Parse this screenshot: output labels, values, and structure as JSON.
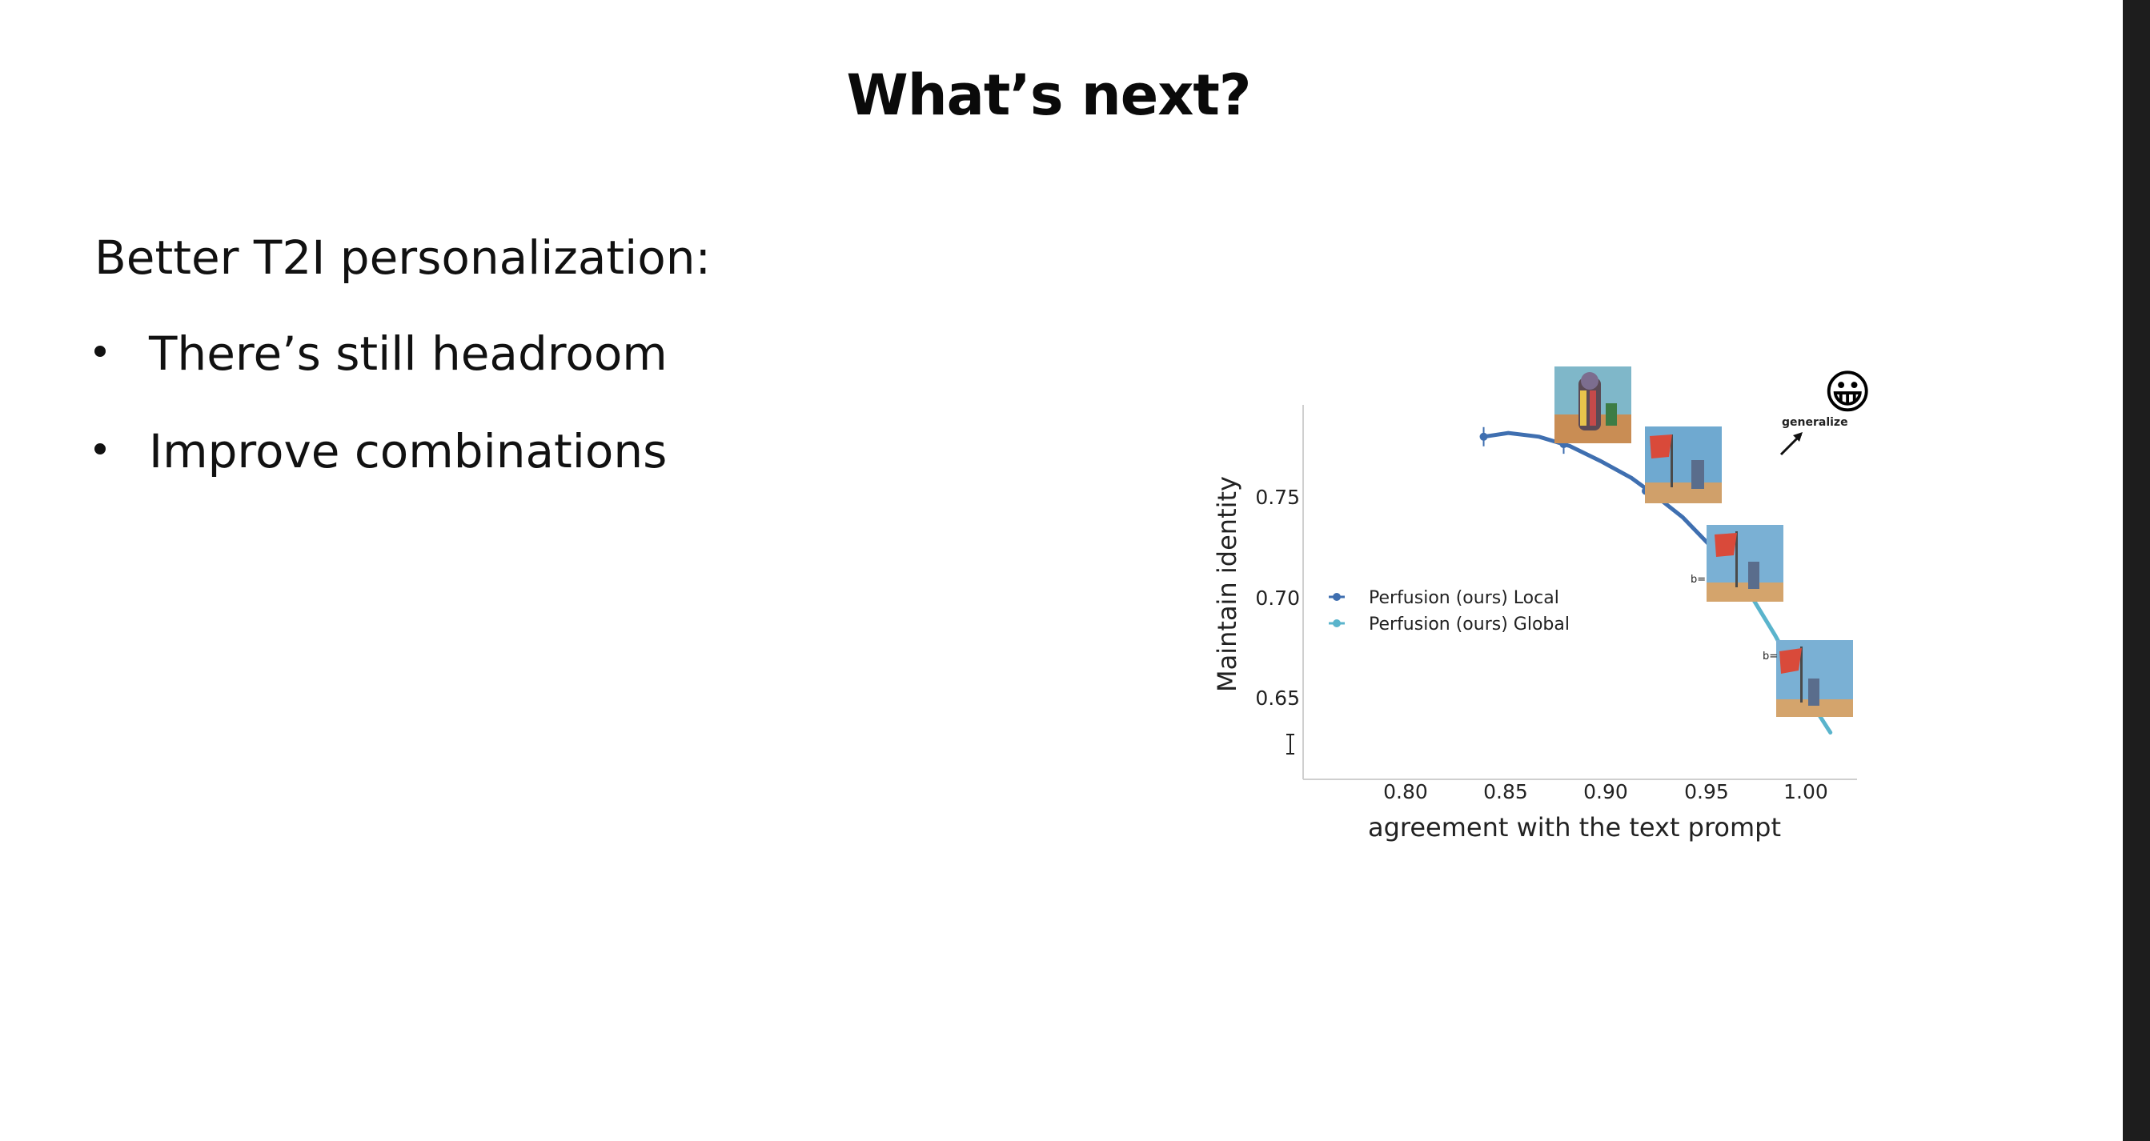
{
  "slide": {
    "title": "What’s next?",
    "heading": "Better T2I personalization:",
    "bullets": [
      "There’s still headroom",
      "Improve combinations"
    ]
  },
  "chart_data": {
    "type": "line",
    "title": "",
    "xlabel": "agreement with the text prompt",
    "ylabel": "Maintain identity",
    "xlim": [
      0.755,
      1.025
    ],
    "ylim": [
      0.595,
      0.795
    ],
    "x_ticks": [
      "0.80",
      "0.85",
      "0.90",
      "0.95",
      "1.00"
    ],
    "y_ticks": [
      "0.75",
      "0.70",
      "0.65"
    ],
    "legend_position": "left",
    "series": [
      {
        "name": "Perfusion (ours) Local",
        "color": "#3f6fb0",
        "x": [
          0.843,
          0.855,
          0.87,
          0.885,
          0.9,
          0.915,
          0.925,
          0.94,
          0.955,
          0.965
        ],
        "y": [
          0.778,
          0.78,
          0.778,
          0.773,
          0.765,
          0.756,
          0.748,
          0.735,
          0.718,
          0.705
        ]
      },
      {
        "name": "Perfusion (ours) Global",
        "color": "#5ab4cc",
        "x": [
          0.965,
          0.975,
          0.985,
          0.995,
          1.005,
          1.012
        ],
        "y": [
          0.705,
          0.69,
          0.672,
          0.652,
          0.632,
          0.62
        ]
      }
    ],
    "markers": [
      {
        "x": 0.843,
        "y": 0.778
      },
      {
        "x": 0.882,
        "y": 0.774
      },
      {
        "x": 0.922,
        "y": 0.749
      }
    ],
    "annotations": {
      "arrow_label": "generalize",
      "b_label_1": "b=",
      "b_label_2": "b=",
      "emoji": "😀"
    }
  }
}
